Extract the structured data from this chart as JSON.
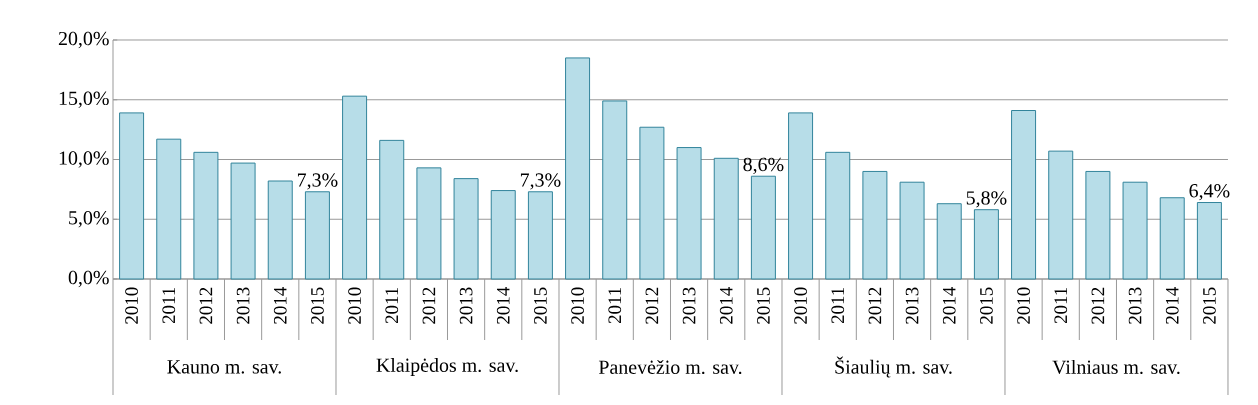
{
  "chart_data": {
    "type": "bar",
    "categories": [
      "2010",
      "2011",
      "2012",
      "2013",
      "2014",
      "2015",
      "2010",
      "2011",
      "2012",
      "2013",
      "2014",
      "2015",
      "2010",
      "2011",
      "2012",
      "2013",
      "2014",
      "2015",
      "2010",
      "2011",
      "2012",
      "2013",
      "2014",
      "2015",
      "2010",
      "2011",
      "2012",
      "2013",
      "2014",
      "2015"
    ],
    "values": [
      13.9,
      11.7,
      10.6,
      9.7,
      8.2,
      7.3,
      15.3,
      11.6,
      9.3,
      8.4,
      7.4,
      7.3,
      18.5,
      14.9,
      12.7,
      11.0,
      10.1,
      8.6,
      13.9,
      10.6,
      9.0,
      8.1,
      6.3,
      5.8,
      14.1,
      10.7,
      9.0,
      8.1,
      6.8,
      6.4
    ],
    "value_labels": [
      null,
      null,
      null,
      null,
      null,
      "7,3%",
      null,
      null,
      null,
      null,
      null,
      "7,3%",
      null,
      null,
      null,
      null,
      null,
      "8,6%",
      null,
      null,
      null,
      null,
      null,
      "5,8%",
      null,
      null,
      null,
      null,
      null,
      "6,4%"
    ],
    "color": "#b7dde8",
    "ylim": [
      0,
      20
    ],
    "yticks": [
      {
        "value": 0,
        "label": "0,0%"
      },
      {
        "value": 5,
        "label": "5,0%"
      },
      {
        "value": 10,
        "label": "10,0%"
      },
      {
        "value": 15,
        "label": "15,0%"
      },
      {
        "value": 20,
        "label": "20,0%"
      }
    ],
    "grid": "y",
    "annotations": [
      "Kauno m. sav.",
      "Klaipėdos m. sav.",
      "Panevėžio m. sav.",
      "Šiaulių m. sav.",
      "Vilniaus m. sav."
    ]
  }
}
